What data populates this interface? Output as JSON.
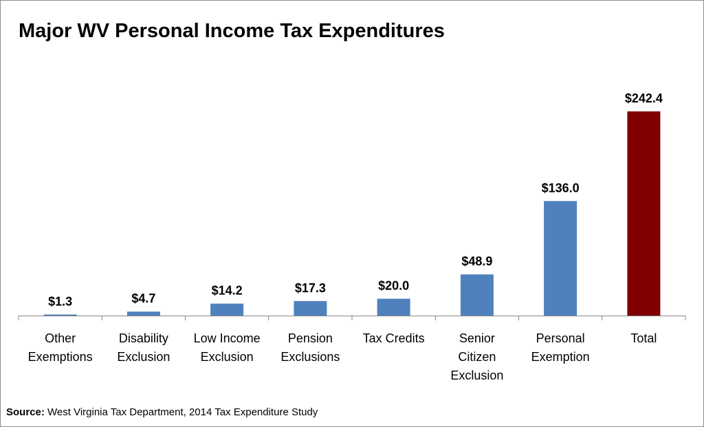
{
  "chart_data": {
    "type": "bar",
    "title": "Major WV Personal Income Tax Expenditures",
    "categories": [
      [
        "Other",
        "Exemptions"
      ],
      [
        "Disability",
        "Exclusion"
      ],
      [
        "Low Income",
        "Exclusion"
      ],
      [
        "Pension",
        "Exclusions"
      ],
      [
        "Tax Credits"
      ],
      [
        "Senior",
        "Citizen",
        "Exclusion"
      ],
      [
        "Personal",
        "Exemption"
      ],
      [
        "Total"
      ]
    ],
    "values": [
      1.3,
      4.7,
      14.2,
      17.3,
      20.0,
      48.9,
      136.0,
      242.4
    ],
    "data_labels": [
      "$1.3",
      "$4.7",
      "$14.2",
      "$17.3",
      "$20.0",
      "$48.9",
      "$136.0",
      "$242.4"
    ],
    "colors": [
      "#4f81bd",
      "#4f81bd",
      "#4f81bd",
      "#4f81bd",
      "#4f81bd",
      "#4f81bd",
      "#4f81bd",
      "#800000"
    ],
    "xlabel": "",
    "ylabel": "",
    "ylim": [
      0,
      242.4
    ],
    "grid": false,
    "legend": "none"
  },
  "source": {
    "label": "Source:",
    "text": " West Virginia Tax Department, 2014 Tax Expenditure Study"
  }
}
